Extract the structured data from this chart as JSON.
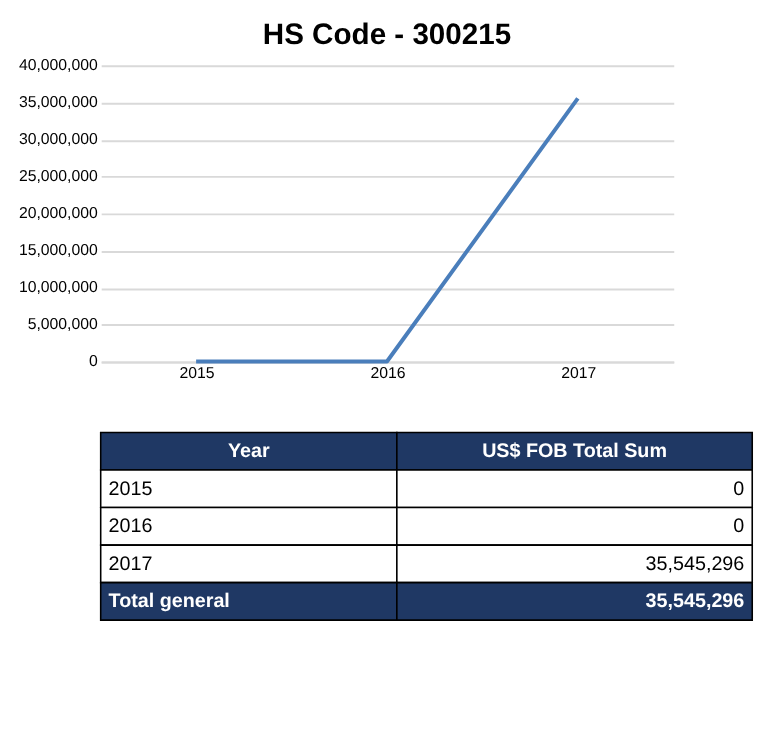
{
  "chart_data": {
    "type": "line",
    "title": "HS Code - 300215",
    "categories": [
      "2015",
      "2016",
      "2017"
    ],
    "values": [
      0,
      0,
      35545296
    ],
    "color": "#4a7ebb",
    "ylim": [
      0,
      40000000
    ],
    "yticks": [
      0,
      {
        "value": 5000000,
        "label": "5,000,000"
      },
      {
        "value": 10000000,
        "label": "10,000,000"
      },
      {
        "value": 15000000,
        "label": "15,000,000"
      },
      {
        "value": 20000000,
        "label": "20,000,000"
      },
      {
        "value": 25000000,
        "label": "25,000,000"
      },
      {
        "value": 30000000,
        "label": "30,000,000"
      },
      {
        "value": 35000000,
        "label": "35,000,000"
      },
      {
        "value": 40000000,
        "label": "40,000,000"
      }
    ],
    "grid": "y",
    "annotations": [
      "Year",
      "US$ FOB Total Sum",
      "2015",
      "0",
      "2016",
      "0",
      "2017",
      "35,545,296",
      "Total general",
      "35,545,296"
    ]
  }
}
